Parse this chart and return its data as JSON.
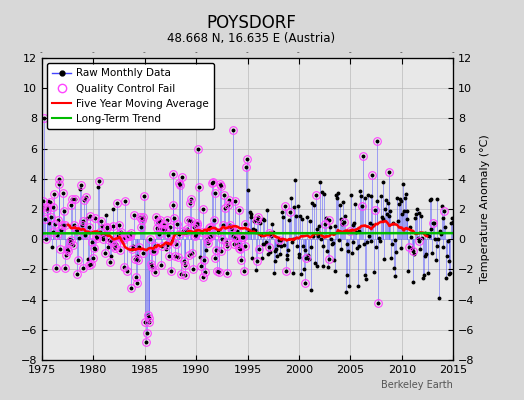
{
  "title": "POYSDORF",
  "subtitle": "48.668 N, 16.635 E (Austria)",
  "ylabel": "Temperature Anomaly (°C)",
  "watermark": "Berkeley Earth",
  "xlim": [
    1975,
    2015
  ],
  "ylim": [
    -8,
    12
  ],
  "yticks": [
    -8,
    -6,
    -4,
    -2,
    0,
    2,
    4,
    6,
    8,
    10,
    12
  ],
  "xticks": [
    1975,
    1980,
    1985,
    1990,
    1995,
    2000,
    2005,
    2010,
    2015
  ],
  "bg_color": "#d8d8d8",
  "plot_bg_color": "#e8e8e8",
  "raw_color": "#4444ff",
  "moving_avg_color": "#ff0000",
  "trend_color": "#00bb00",
  "qc_fail_color": "#ff44ff",
  "seed": 137
}
